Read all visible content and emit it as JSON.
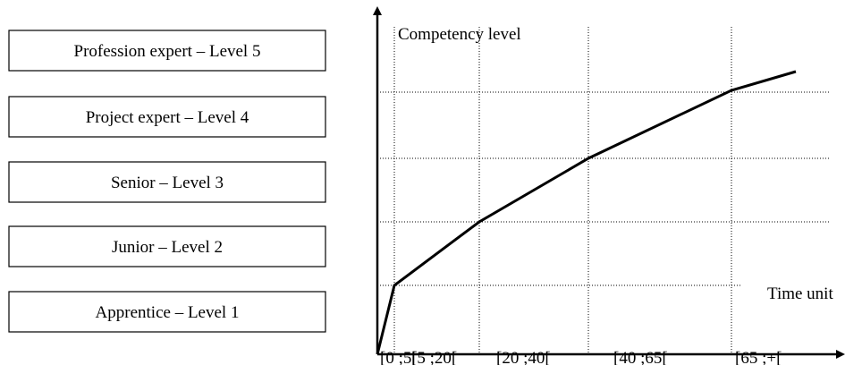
{
  "levels": [
    "Profession expert – Level 5",
    "Project expert – Level 4",
    "Senior – Level 3",
    "Junior – Level 2",
    "Apprentice – Level 1"
  ],
  "y_axis_label": "Competency level",
  "x_axis_label": "Time unit",
  "intervals": [
    "[0 ;5[",
    "[5 ;20[",
    "[20 ;40[",
    "[40 ;65[",
    "[65 ;+["
  ]
}
